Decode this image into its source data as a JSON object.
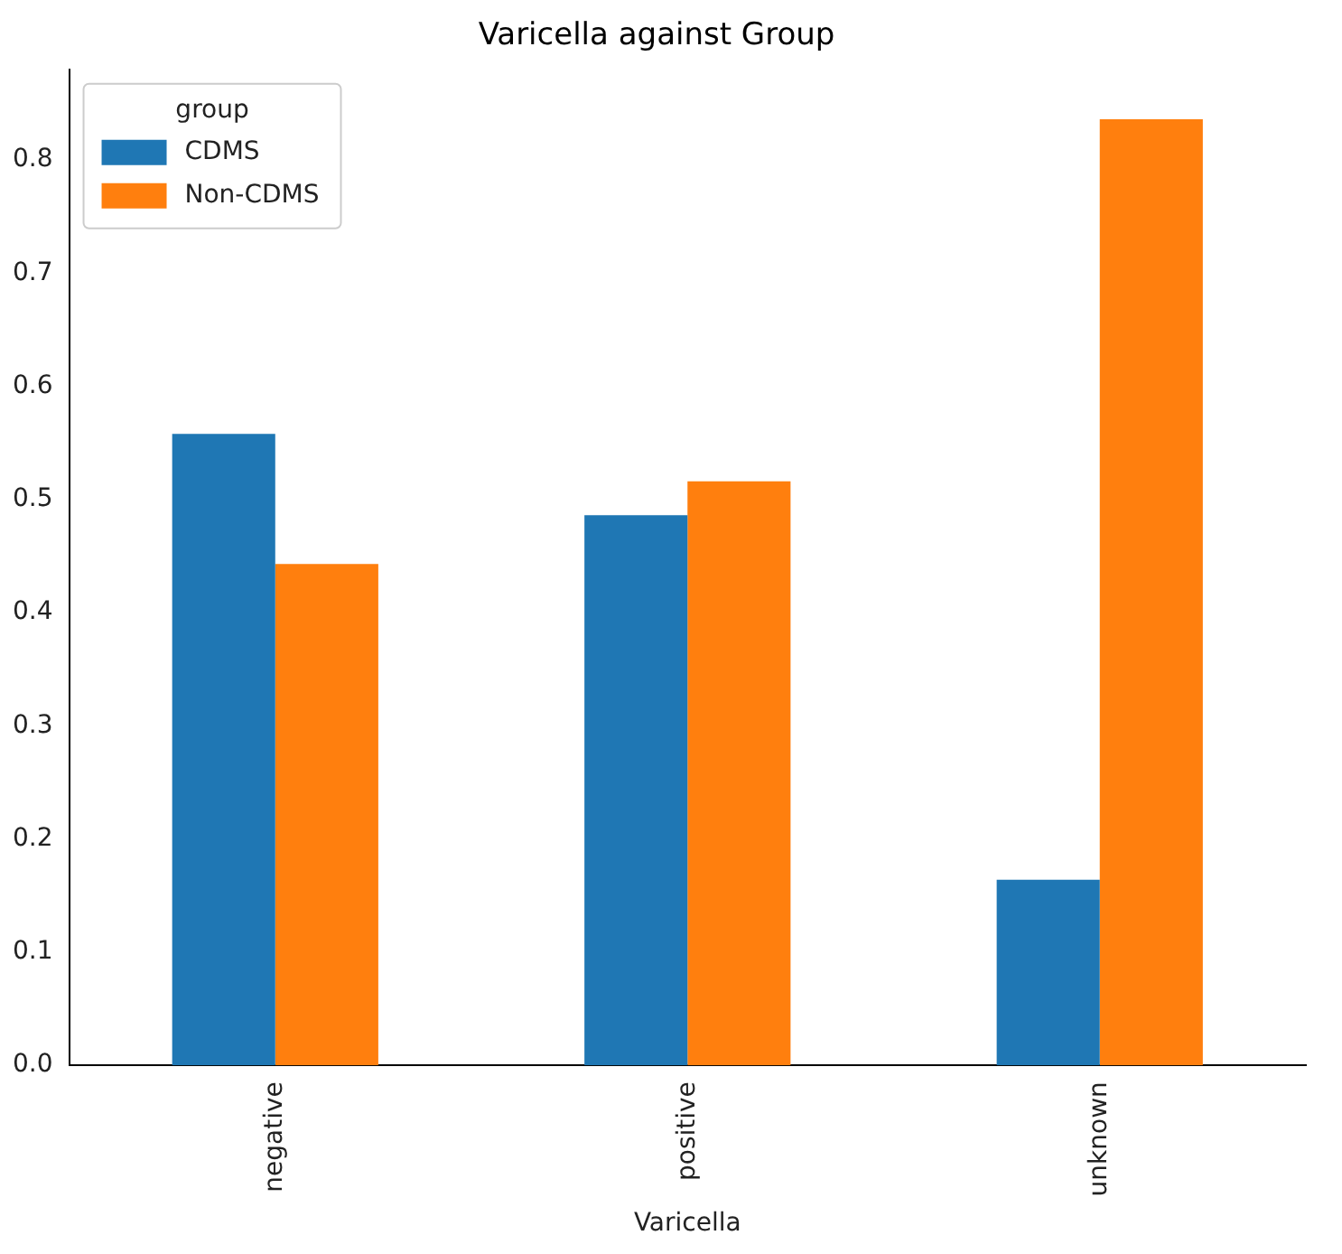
{
  "chart_data": {
    "type": "bar",
    "title": "Varicella against Group",
    "xlabel": "Varicella",
    "legend_title": "group",
    "categories": [
      "negative",
      "positive",
      "unknown"
    ],
    "series": [
      {
        "name": "CDMS",
        "color": "#1f77b4",
        "values": [
          0.558,
          0.486,
          0.164
        ]
      },
      {
        "name": "Non-CDMS",
        "color": "#ff7f0e",
        "values": [
          0.443,
          0.516,
          0.836
        ]
      }
    ],
    "ylim": [
      0,
      0.88
    ],
    "yticks": [
      {
        "value": 0,
        "label": "0.0"
      },
      0.1,
      0.2,
      0.3,
      0.4,
      0.5,
      0.6,
      0.7,
      0.8
    ],
    "grid": false,
    "legend": "top left"
  }
}
